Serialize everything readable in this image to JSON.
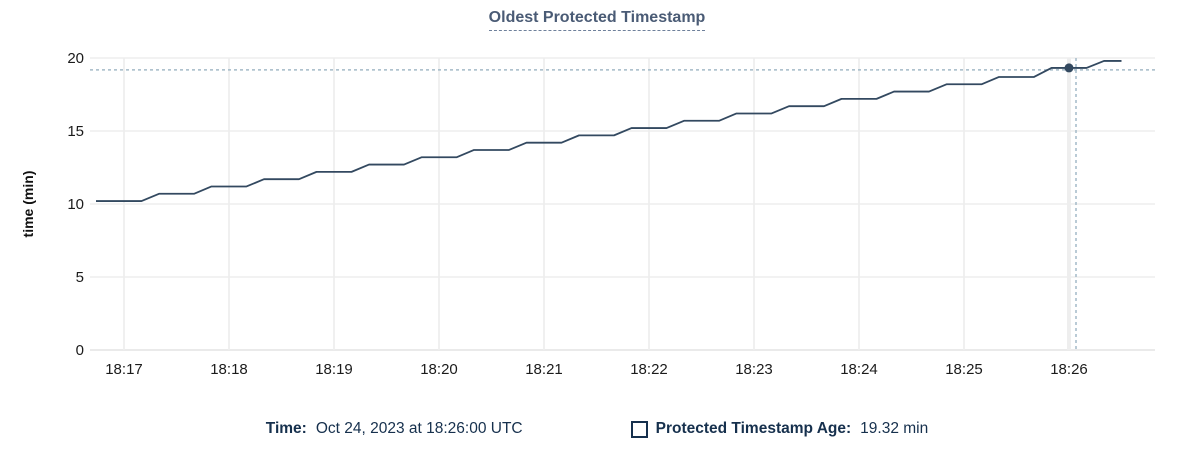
{
  "title": "Oldest Protected Timestamp",
  "tooltip": {
    "time_label": "Time:",
    "time_value": "Oct 24, 2023 at 18:26:00 UTC",
    "series_label": "Protected Timestamp Age:",
    "series_value": "19.32 min",
    "swatch_style": "square-outline"
  },
  "colors": {
    "title": "#4a5b75",
    "legend_text": "#16304d",
    "line": "#334960",
    "marker": "#334960",
    "crosshair": "#a4bac8",
    "grid": "#eeeeee",
    "axis_line": "#e3e3e3",
    "tick_label": "#1b1b1b",
    "axis_title": "#111111",
    "background": "#ffffff"
  },
  "chart_data": {
    "type": "line",
    "title": "Oldest Protected Timestamp",
    "xlabel": "",
    "ylabel": "time (min)",
    "x_ticks": [
      "18:17",
      "18:18",
      "18:19",
      "18:20",
      "18:21",
      "18:22",
      "18:23",
      "18:24",
      "18:25",
      "18:26"
    ],
    "y_ticks": [
      0,
      5,
      10,
      15,
      20
    ],
    "ylim": [
      0,
      20
    ],
    "x_range": [
      "18:16:42",
      "18:26:49"
    ],
    "grid": true,
    "legend_position": "bottom-center",
    "series": [
      {
        "name": "Protected Timestamp Age",
        "unit": "min",
        "points": [
          [
            "18:16:44",
            10.2
          ],
          [
            "18:17:10",
            10.2
          ],
          [
            "18:17:20",
            10.7
          ],
          [
            "18:17:40",
            10.7
          ],
          [
            "18:17:50",
            11.2
          ],
          [
            "18:18:10",
            11.2
          ],
          [
            "18:18:20",
            11.7
          ],
          [
            "18:18:40",
            11.7
          ],
          [
            "18:18:50",
            12.2
          ],
          [
            "18:19:10",
            12.2
          ],
          [
            "18:19:20",
            12.7
          ],
          [
            "18:19:40",
            12.7
          ],
          [
            "18:19:50",
            13.2
          ],
          [
            "18:20:10",
            13.2
          ],
          [
            "18:20:20",
            13.7
          ],
          [
            "18:20:40",
            13.7
          ],
          [
            "18:20:50",
            14.2
          ],
          [
            "18:21:10",
            14.2
          ],
          [
            "18:21:20",
            14.7
          ],
          [
            "18:21:40",
            14.7
          ],
          [
            "18:21:50",
            15.2
          ],
          [
            "18:22:10",
            15.2
          ],
          [
            "18:22:20",
            15.7
          ],
          [
            "18:22:40",
            15.7
          ],
          [
            "18:22:50",
            16.2
          ],
          [
            "18:23:10",
            16.2
          ],
          [
            "18:23:20",
            16.7
          ],
          [
            "18:23:40",
            16.7
          ],
          [
            "18:23:50",
            17.2
          ],
          [
            "18:24:10",
            17.2
          ],
          [
            "18:24:20",
            17.7
          ],
          [
            "18:24:40",
            17.7
          ],
          [
            "18:24:50",
            18.2
          ],
          [
            "18:25:10",
            18.2
          ],
          [
            "18:25:20",
            18.7
          ],
          [
            "18:25:40",
            18.7
          ],
          [
            "18:25:50",
            19.32
          ],
          [
            "18:26:10",
            19.32
          ],
          [
            "18:26:20",
            19.8
          ],
          [
            "18:26:30",
            19.8
          ]
        ]
      }
    ],
    "highlight_point": {
      "x": "18:26:00",
      "y": 19.32
    }
  }
}
